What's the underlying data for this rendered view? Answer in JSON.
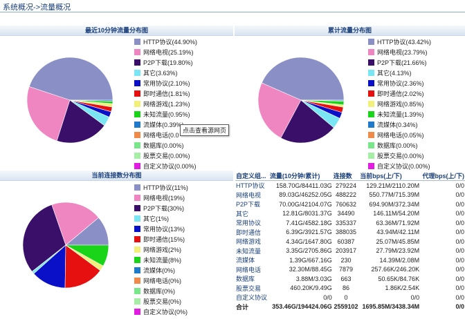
{
  "breadcrumb": {
    "part1": "系统概况",
    "sep": "->",
    "part2": "流量概况"
  },
  "tooltip": "点击查看源网页",
  "panels": [
    {
      "title": "最近10分钟流量分布图",
      "items": [
        {
          "label": "HTTP协议(44.90%)",
          "value": 44.9,
          "color": "#8a8fc6"
        },
        {
          "label": "网络电视(25.19%)",
          "value": 25.19,
          "color": "#ef86c2"
        },
        {
          "label": "P2P下载(19.80%)",
          "value": 19.8,
          "color": "#3a0f6a"
        },
        {
          "label": "其它(3.63%)",
          "value": 3.63,
          "color": "#7ae6f4"
        },
        {
          "label": "常用协议(2.10%)",
          "value": 2.1,
          "color": "#0a10c8"
        },
        {
          "label": "即时通信(1.81%)",
          "value": 1.81,
          "color": "#e61010"
        },
        {
          "label": "网络游戏(1.23%)",
          "value": 1.23,
          "color": "#f0f07a"
        },
        {
          "label": "未知流量(0.95%)",
          "value": 0.95,
          "color": "#19d419"
        },
        {
          "label": "流媒体(0.39%)",
          "value": 0.39,
          "color": "#1f7acc"
        },
        {
          "label": "网络电话(0.0",
          "value": 0.0,
          "color": "#ef8a4a"
        },
        {
          "label": "数据库(0.00%)",
          "value": 0.0,
          "color": "#7ae68a"
        },
        {
          "label": "股票交易(0.00%)",
          "value": 0.0,
          "color": "#a6eda6"
        },
        {
          "label": "自定义协议(0.00%)",
          "value": 0.0,
          "color": "#e21ce2"
        }
      ]
    },
    {
      "title": "累计流量分布图",
      "items": [
        {
          "label": "HTTP协议(43.42%)",
          "value": 43.42,
          "color": "#8a8fc6"
        },
        {
          "label": "网络电视(23.79%)",
          "value": 23.79,
          "color": "#ef86c2"
        },
        {
          "label": "P2P下载(21.66%)",
          "value": 21.66,
          "color": "#3a0f6a"
        },
        {
          "label": "其它(4.13%)",
          "value": 4.13,
          "color": "#7ae6f4"
        },
        {
          "label": "常用协议(2.36%)",
          "value": 2.36,
          "color": "#0a10c8"
        },
        {
          "label": "即时通信(2.02%)",
          "value": 2.02,
          "color": "#e61010"
        },
        {
          "label": "网络游戏(0.85%)",
          "value": 0.85,
          "color": "#f0f07a"
        },
        {
          "label": "未知流量(1.39%)",
          "value": 1.39,
          "color": "#19d419"
        },
        {
          "label": "流媒体(0.34%)",
          "value": 0.34,
          "color": "#1f7acc"
        },
        {
          "label": "网络电话(0.05%)",
          "value": 0.05,
          "color": "#ef8a4a"
        },
        {
          "label": "数据库(0.00%)",
          "value": 0.0,
          "color": "#7ae68a"
        },
        {
          "label": "股票交易(0.00%)",
          "value": 0.0,
          "color": "#a6eda6"
        },
        {
          "label": "自定义协议(0.00%)",
          "value": 0.0,
          "color": "#e21ce2"
        }
      ]
    },
    {
      "title": "当前连接数分布图",
      "items": [
        {
          "label": "HTTP协议(11%)",
          "value": 11,
          "color": "#8a8fc6"
        },
        {
          "label": "网络电视(19%)",
          "value": 19,
          "color": "#ef86c2"
        },
        {
          "label": "P2P下载(30%)",
          "value": 30,
          "color": "#3a0f6a"
        },
        {
          "label": "其它(1%)",
          "value": 1,
          "color": "#7ae6f4"
        },
        {
          "label": "常用协议(13%)",
          "value": 13,
          "color": "#0a10c8"
        },
        {
          "label": "即时通信(15%)",
          "value": 15,
          "color": "#e61010"
        },
        {
          "label": "网络游戏(2%)",
          "value": 2,
          "color": "#f0f07a"
        },
        {
          "label": "未知流量(8%)",
          "value": 8,
          "color": "#19d419"
        },
        {
          "label": "流媒体(0%)",
          "value": 0,
          "color": "#1f7acc"
        },
        {
          "label": "网络电话(0%)",
          "value": 0,
          "color": "#ef8a4a"
        },
        {
          "label": "数据库(0%)",
          "value": 0,
          "color": "#7ae68a"
        },
        {
          "label": "股票交易(0%)",
          "value": 0,
          "color": "#a6eda6"
        },
        {
          "label": "自定义协议(0%)",
          "value": 0,
          "color": "#e21ce2"
        }
      ]
    }
  ],
  "table": {
    "headers": [
      "自定义组...",
      "流量(10分钟/累计)",
      "连接数",
      "当前bps(上/下)",
      "代理bps(上/下)"
    ],
    "rows": [
      [
        "HTTP协议",
        "158.70G/84411.03G",
        "279224",
        "129.21M/2110.20M",
        "0/0"
      ],
      [
        "网络电视",
        "89.03G/46252.05G",
        "488222",
        "550.77M/715.39M",
        "0/0"
      ],
      [
        "P2P下载",
        "70.00G/42104.07G",
        "760632",
        "694.90M/372.34M",
        "0/0"
      ],
      [
        "其它",
        "12.81G/8031.37G",
        "34490",
        "146.11M/54.20M",
        "0/0"
      ],
      [
        "常用协议",
        "7.41G/4582.18G",
        "335337",
        "63.36M/71.92M",
        "0/0"
      ],
      [
        "即时通信",
        "6.39G/3921.57G",
        "388035",
        "43.94M/42.11M",
        "0/0"
      ],
      [
        "网络游戏",
        "4.34G/1647.80G",
        "60387",
        "25.07M/45.85M",
        "0/0"
      ],
      [
        "未知流量",
        "3.35G/2705.86G",
        "203917",
        "27.79M/23.92M",
        "0/0"
      ],
      [
        "流媒体",
        "1.39G/667.16G",
        "230",
        "14.39M/2.08M",
        "0/0"
      ],
      [
        "网络电话",
        "32.30M/88.45G",
        "7879",
        "257.66K/246.20K",
        "0/0"
      ],
      [
        "数据库",
        "3.88M/3.03G",
        "663",
        "50.65K/84.76K",
        "0/0"
      ],
      [
        "股票交易",
        "460.20K/9.49G",
        "86",
        "1.86K/2.54K",
        "0/0"
      ],
      [
        "自定义协议",
        "0/0",
        "0",
        "0/0",
        "0/0"
      ]
    ],
    "total": [
      "合计",
      "353.46G/194424.06G",
      "2559102",
      "1695.85M/3438.34M",
      "0/0"
    ]
  }
}
